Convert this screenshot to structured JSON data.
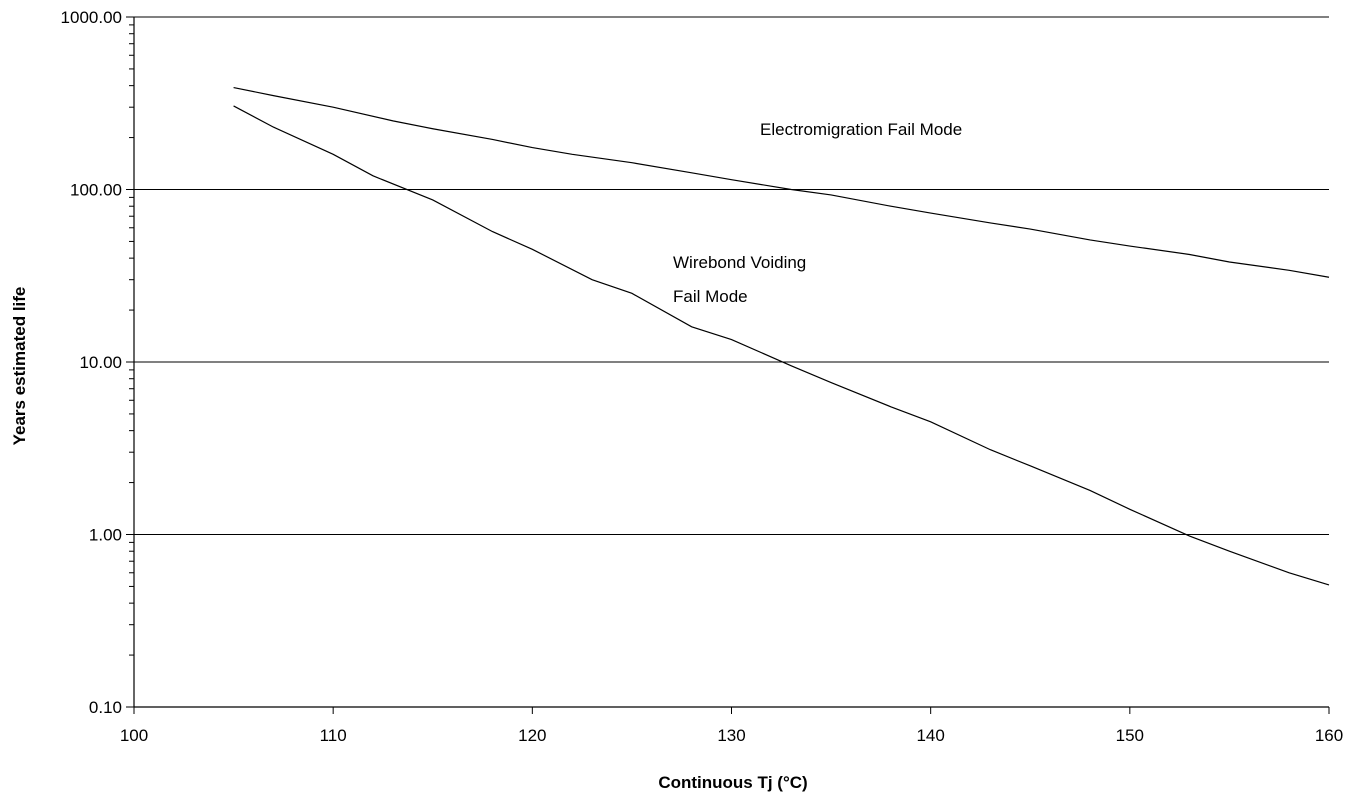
{
  "chart_data": {
    "type": "line",
    "title": "",
    "xlabel": "Continuous Tj (°C)",
    "ylabel": "Years estimated life",
    "xlim": [
      100,
      160
    ],
    "ylim": [
      0.1,
      1000
    ],
    "yscale": "log",
    "grid": "horizontal major gridlines",
    "legend": "none",
    "x_ticks": [
      100,
      110,
      120,
      130,
      140,
      150,
      160
    ],
    "x_tick_labels": [
      "100",
      "110",
      "120",
      "130",
      "140",
      "150",
      "160"
    ],
    "y_ticks": [
      0.1,
      1,
      10,
      100,
      1000
    ],
    "y_tick_labels": [
      "0.10",
      "1.00",
      "10.00",
      "100.00",
      "1000.00"
    ],
    "annotations": {
      "electromigration": "Electromigration Fail Mode",
      "wirebond_line1": "Wirebond Voiding",
      "wirebond_line2": "Fail Mode"
    },
    "series": [
      {
        "label": "Electromigration Fail Mode",
        "x": [
          105,
          107,
          110,
          113,
          115,
          118,
          120,
          122,
          125,
          128,
          130,
          133,
          135,
          138,
          140,
          143,
          145,
          148,
          150,
          153,
          155,
          158,
          160
        ],
        "y": [
          390,
          350,
          300,
          250,
          225,
          195,
          175,
          160,
          143,
          125,
          114,
          100,
          93,
          80,
          73,
          64,
          59,
          51,
          47,
          42,
          38,
          34,
          31
        ]
      },
      {
        "label": "Wirebond Voiding Fail Mode",
        "x": [
          105,
          107,
          110,
          112,
          115,
          118,
          120,
          123,
          125,
          128,
          130,
          133,
          135,
          138,
          140,
          143,
          145,
          148,
          150,
          153,
          155,
          158,
          160
        ],
        "y": [
          305,
          230,
          160,
          120,
          87,
          57,
          45,
          30,
          25,
          16,
          13.5,
          9.5,
          7.6,
          5.5,
          4.5,
          3.1,
          2.5,
          1.8,
          1.4,
          0.98,
          0.8,
          0.6,
          0.51
        ]
      }
    ],
    "colors": {
      "line": "#000000",
      "grid": "#000000",
      "background": "#ffffff"
    }
  }
}
